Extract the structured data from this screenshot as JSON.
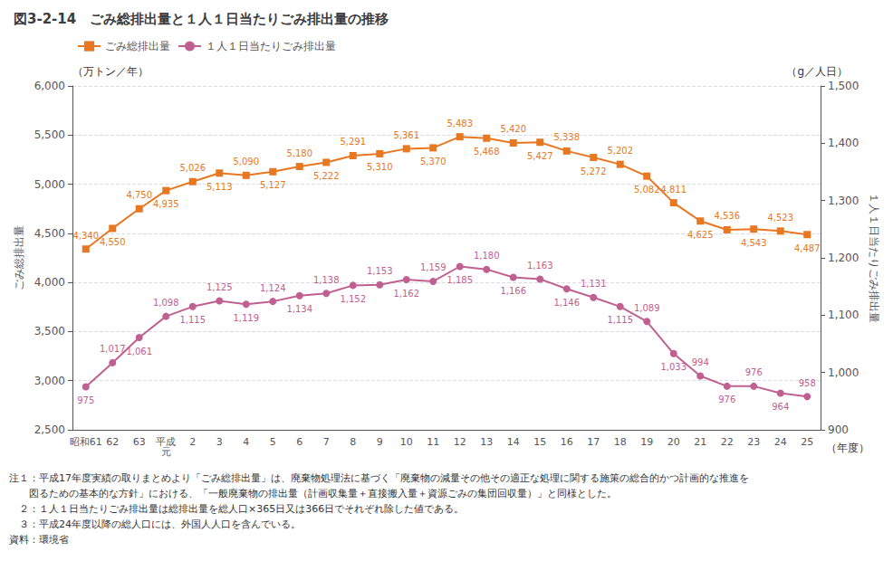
{
  "chart_data": {
    "type": "line",
    "title": "図3-2-14　ごみ総排出量と１人１日当たりごみ排出量の推移",
    "categories": [
      "昭和61",
      "62",
      "63",
      "平成\n元",
      "2",
      "3",
      "4",
      "5",
      "6",
      "7",
      "8",
      "9",
      "10",
      "11",
      "12",
      "13",
      "14",
      "15",
      "16",
      "17",
      "18",
      "19",
      "20",
      "21",
      "22",
      "23",
      "24",
      "25"
    ],
    "xlabel": "（年度）",
    "ylabel": "ごみ総排出量",
    "y2label": "１人１日当たりごみ排出量",
    "y_unit": "（万トン／年）",
    "y2_unit": "（g／人日）",
    "series": [
      {
        "name": "ごみ総排出量",
        "color": "#E87722",
        "marker": "square",
        "values": [
          4340,
          4550,
          4750,
          4935,
          5026,
          5113,
          5090,
          5127,
          5180,
          5222,
          5291,
          5310,
          5361,
          5370,
          5483,
          5468,
          5420,
          5427,
          5338,
          5272,
          5202,
          5082,
          4811,
          4625,
          4536,
          4543,
          4523,
          4487
        ],
        "value_labels": [
          "4,340",
          "4,550",
          "4,750",
          "4,935",
          "5,026",
          "5,113",
          "5,090",
          "5,127",
          "5,180",
          "5,222",
          "5,291",
          "5,310",
          "5,361",
          "5,370",
          "5,483",
          "5,468",
          "5,420",
          "5,427",
          "5,338",
          "5,272",
          "5,202",
          "5,082",
          "4,811",
          "4,625",
          "4,536",
          "4,543",
          "4,523",
          "4,487"
        ]
      },
      {
        "name": "１人１日当たりごみ排出量",
        "color": "#C06090",
        "marker": "circle",
        "axis": "y2",
        "values": [
          975,
          1017,
          1061,
          1098,
          1115,
          1125,
          1119,
          1124,
          1134,
          1138,
          1152,
          1153,
          1162,
          1159,
          1185,
          1180,
          1166,
          1163,
          1146,
          1131,
          1115,
          1089,
          1033,
          994,
          976,
          976,
          964,
          958
        ],
        "value_labels": [
          "975",
          "1,017",
          "1,061",
          "1,098",
          "1,115",
          "1,125",
          "1,119",
          "1,124",
          "1,134",
          "1,138",
          "1,152",
          "1,153",
          "1,162",
          "1,159",
          "1,185",
          "1,180",
          "1,166",
          "1,163",
          "1,146",
          "1,131",
          "1,115",
          "1,089",
          "1,033",
          "994",
          "976",
          "976",
          "964",
          "958"
        ]
      }
    ],
    "ylim": [
      2500,
      6000
    ],
    "yticks": [
      {
        "value": 2500,
        "label": "2,500"
      },
      {
        "value": 3000,
        "label": "3,000"
      },
      {
        "value": 3500,
        "label": "3,500"
      },
      {
        "value": 4000,
        "label": "4,000"
      },
      {
        "value": 4500,
        "label": "4,500"
      },
      {
        "value": 5000,
        "label": "5,000"
      },
      {
        "value": 5500,
        "label": "5,500"
      },
      {
        "value": 6000,
        "label": "6,000"
      }
    ],
    "y2lim": [
      900,
      1500
    ],
    "y2ticks": [
      900,
      {
        "value": 1000,
        "label": "1,000"
      },
      {
        "value": 1100,
        "label": "1,100"
      },
      {
        "value": 1200,
        "label": "1,200"
      },
      {
        "value": 1300,
        "label": "1,300"
      },
      {
        "value": 1400,
        "label": "1,400"
      },
      {
        "value": 1500,
        "label": "1,500"
      }
    ],
    "grid": true,
    "legend": "upper left",
    "data_labels": true,
    "notes": [
      "注１：平成17年度実績の取りまとめより「ごみ総排出量」は、廃棄物処理法に基づく「廃棄物の減量その他その適正な処理に関する施策の総合的かつ計画的な推進を",
      "　　図るための基本的な方針」における、「一般廃棄物の排出量（計画収集量＋直接搬入量＋資源ごみの集団回収量）」と同様とした。",
      "　２：１人１日当たりごみ排出量は総排出量を総人口×365日又は366日でそれぞれ除した値である。",
      "　３：平成24年度以降の総人口には、外国人人口を含んでいる。",
      "資料：環境省"
    ]
  }
}
